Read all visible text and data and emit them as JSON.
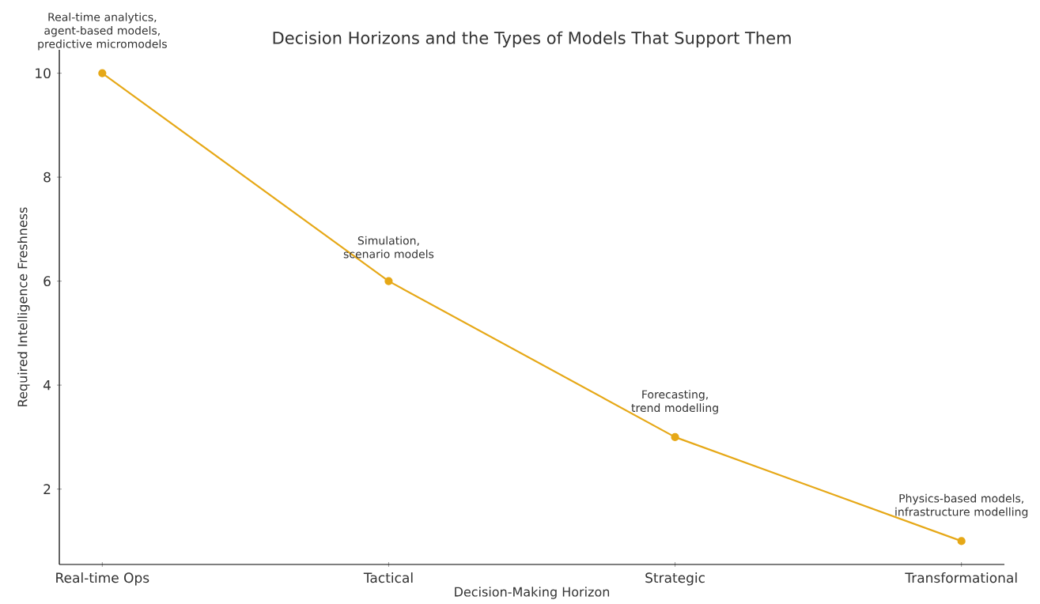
{
  "chart_data": {
    "type": "line",
    "title": "Decision Horizons and the Types of Models That Support Them",
    "xlabel": "Decision-Making Horizon",
    "ylabel": "Required Intelligence Freshness",
    "categories": [
      "Real-time Ops",
      "Tactical",
      "Strategic",
      "Transformational"
    ],
    "series": [
      {
        "color": "#e6a817",
        "values": [
          10,
          6,
          3,
          1
        ]
      }
    ],
    "ylim": [
      0.55,
      10.45
    ],
    "yticks": [
      2,
      4,
      6,
      8,
      10
    ],
    "marker": "circle",
    "line_style": "solid",
    "grid": false,
    "annotations": [
      {
        "text": "Real-time analytics, agent-based models, predictive micromodels",
        "x": "Real-time Ops",
        "y": 10
      },
      {
        "text": "Simulation, scenario models",
        "x": "Tactical",
        "y": 6
      },
      {
        "text": "Forecasting, trend modelling",
        "x": "Strategic",
        "y": 3
      },
      {
        "text": "Physics-based models, infrastructure modelling",
        "x": "Transformational",
        "y": 1
      }
    ]
  }
}
